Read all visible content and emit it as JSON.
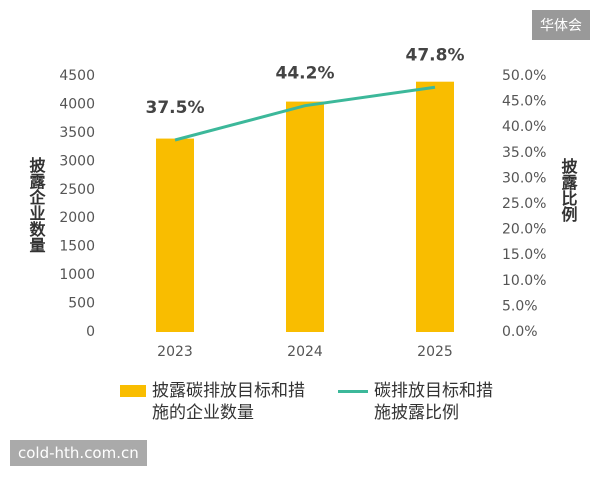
{
  "chart_data": {
    "type": "bar",
    "y_label": "披露企业数量",
    "y2_label": "披露比例",
    "categories": [
      "2023",
      "2024",
      "2025"
    ],
    "series": [
      {
        "name": "披露碳排放目标和措施的企业数量",
        "type": "bar",
        "color": "#f9bd00",
        "values": [
          3400,
          4050,
          4400
        ]
      },
      {
        "name": "碳排放目标和措施披露比例",
        "type": "line",
        "axis": "y2",
        "color": "#3cb89a",
        "values": [
          37.5,
          44.2,
          47.8
        ],
        "value_labels": [
          "37.5%",
          "44.2%",
          "47.8%"
        ]
      }
    ],
    "ylim": [
      0,
      4500
    ],
    "yticks": [
      0,
      500,
      1000,
      1500,
      2000,
      2500,
      3000,
      3500,
      4000,
      4500
    ],
    "y2lim": [
      0,
      50
    ],
    "y2ticks": [
      {
        "value": 0,
        "label": "0.0%"
      },
      {
        "value": 5,
        "label": "5.0%"
      },
      {
        "value": 10,
        "label": "10.0%"
      },
      {
        "value": 15,
        "label": "15.0%"
      },
      {
        "value": 20,
        "label": "20.0%"
      },
      {
        "value": 25,
        "label": "25.0%"
      },
      {
        "value": 30,
        "label": "30.0%"
      },
      {
        "value": 35,
        "label": "35.0%"
      },
      {
        "value": 40,
        "label": "40.0%"
      },
      {
        "value": 45,
        "label": "45.0%"
      },
      {
        "value": 50,
        "label": "50.0%"
      }
    ],
    "grid": false
  },
  "watermarks": [
    "华体会",
    "cold-hth.com.cn"
  ]
}
